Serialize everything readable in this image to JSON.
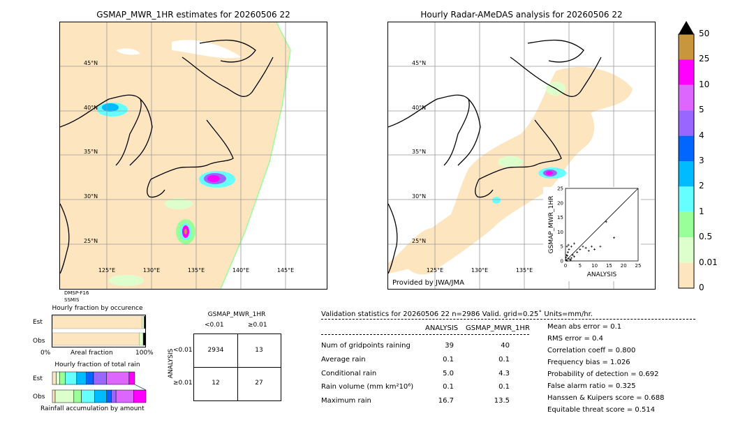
{
  "left_map": {
    "title": "GSMAP_MWR_1HR estimates for 20260506 22",
    "sensors": [
      "DMSP-F16",
      "SSMIS"
    ],
    "lat_labels": [
      "45°N",
      "40°N",
      "35°N",
      "30°N",
      "25°N"
    ],
    "lon_labels": [
      "125°E",
      "130°E",
      "135°E",
      "140°E",
      "145°E"
    ]
  },
  "right_map": {
    "title": "Hourly Radar-AMeDAS analysis for 20260506 22",
    "provided_by": "Provided by JWA/JMA",
    "lat_labels": [
      "45°N",
      "40°N",
      "35°N",
      "30°N",
      "25°N"
    ],
    "lon_labels": [
      "125°E",
      "130°E",
      "135°E"
    ]
  },
  "colorbar": {
    "labels": [
      "50",
      "25",
      "10",
      "5",
      "4",
      "3",
      "2",
      "1",
      "0.5",
      "0.01",
      "0"
    ],
    "colors": [
      "#c8963c",
      "#ff00ff",
      "#dd66ff",
      "#9966ff",
      "#0066ff",
      "#00bbff",
      "#66ffff",
      "#99ff99",
      "#ddffcc",
      "#fde6bf"
    ],
    "over_color": "#000000"
  },
  "chart_data": [
    {
      "type": "scatter",
      "xlabel": "ANALYSIS",
      "ylabel": "GSMAP_MWR_1HR",
      "xlim": [
        0,
        25
      ],
      "ylim": [
        0,
        25
      ],
      "ticks": [
        "0",
        "5",
        "10",
        "15",
        "20",
        "25"
      ],
      "points": [
        [
          0.2,
          0.3
        ],
        [
          0.5,
          0.1
        ],
        [
          1,
          0.8
        ],
        [
          1.5,
          0.5
        ],
        [
          2,
          1
        ],
        [
          0.3,
          2
        ],
        [
          0.8,
          3
        ],
        [
          1.2,
          4
        ],
        [
          2.5,
          2
        ],
        [
          3,
          1.5
        ],
        [
          4,
          3
        ],
        [
          5,
          4
        ],
        [
          6,
          5
        ],
        [
          7,
          4.5
        ],
        [
          8,
          3.5
        ],
        [
          9,
          5
        ],
        [
          10,
          4
        ],
        [
          16.7,
          8
        ],
        [
          0.5,
          5
        ],
        [
          1,
          5.5
        ],
        [
          2,
          5
        ],
        [
          3,
          6
        ],
        [
          0.2,
          1.2
        ],
        [
          0.6,
          1.8
        ],
        [
          1.8,
          0.3
        ],
        [
          12,
          5
        ],
        [
          14,
          13.5
        ]
      ]
    },
    {
      "type": "bar",
      "title": "Hourly fraction by occurence",
      "xlabel": "Areal fraction",
      "axis_left": "0%",
      "axis_right": "100%",
      "categories": [
        "Est",
        "Obs"
      ],
      "series": [
        {
          "values": [
            0.96,
            0.93
          ],
          "color": "#fde6bf"
        },
        {
          "values": [
            0.02,
            0.04
          ],
          "color": "#ddffcc"
        },
        {
          "values": [
            0.02,
            0.03
          ],
          "color": "#000000"
        }
      ]
    },
    {
      "type": "bar",
      "title": "Hourly fraction of total rain",
      "xlabel": "Rainfall accumulation by amount",
      "categories": [
        "Est",
        "Obs"
      ],
      "est_segments": [
        [
          "#fde6bf",
          0.04
        ],
        [
          "#ddffcc",
          0.04
        ],
        [
          "#99ff99",
          0.06
        ],
        [
          "#66ffff",
          0.12
        ],
        [
          "#00bbff",
          0.1
        ],
        [
          "#0066ff",
          0.08
        ],
        [
          "#9966ff",
          0.14
        ],
        [
          "#dd66ff",
          0.24
        ],
        [
          "#ff00ff",
          0.06
        ]
      ],
      "obs_segments": [
        [
          "#fde6bf",
          0.03
        ],
        [
          "#ddffcc",
          0.2
        ],
        [
          "#99ff99",
          0.08
        ],
        [
          "#66ffff",
          0.14
        ],
        [
          "#00bbff",
          0.13
        ],
        [
          "#0066ff",
          0.05
        ],
        [
          "#9966ff",
          0.05
        ],
        [
          "#dd66ff",
          0.19
        ],
        [
          "#ff00ff",
          0.13
        ]
      ]
    }
  ],
  "contingency": {
    "title": "GSMAP_MWR_1HR",
    "col_labels": [
      "<0.01",
      "≥0.01"
    ],
    "row_axis": "ANALYSIS",
    "row_labels": [
      "<0.01",
      "≥0.01"
    ],
    "cells": [
      "2934",
      "13",
      "12",
      "27"
    ]
  },
  "validation": {
    "header": "Validation statistics for 20260506 22  n=2986 Valid. grid=0.25˚ Units=mm/hr.",
    "col_analysis": "ANALYSIS",
    "col_gsmap": "GSMAP_MWR_1HR",
    "rows": [
      {
        "label": "Num of gridpoints raining",
        "analysis": "39",
        "gsmap": "40"
      },
      {
        "label": "Average rain",
        "analysis": "0.1",
        "gsmap": "0.1"
      },
      {
        "label": "Conditional rain",
        "analysis": "5.0",
        "gsmap": "4.3"
      },
      {
        "label": "Rain volume (mm km²10⁶)",
        "analysis": "0.1",
        "gsmap": "0.1"
      },
      {
        "label": "Maximum rain",
        "analysis": "16.7",
        "gsmap": "13.5"
      }
    ],
    "scores": [
      "Mean abs error =    0.1",
      "RMS error =    0.4",
      "Correlation coeff =  0.800",
      "Frequency bias =  1.026",
      "Probability of detection =  0.692",
      "False alarm ratio =  0.325",
      "Hanssen & Kuipers score =  0.688",
      "Equitable threat score =  0.514"
    ]
  }
}
